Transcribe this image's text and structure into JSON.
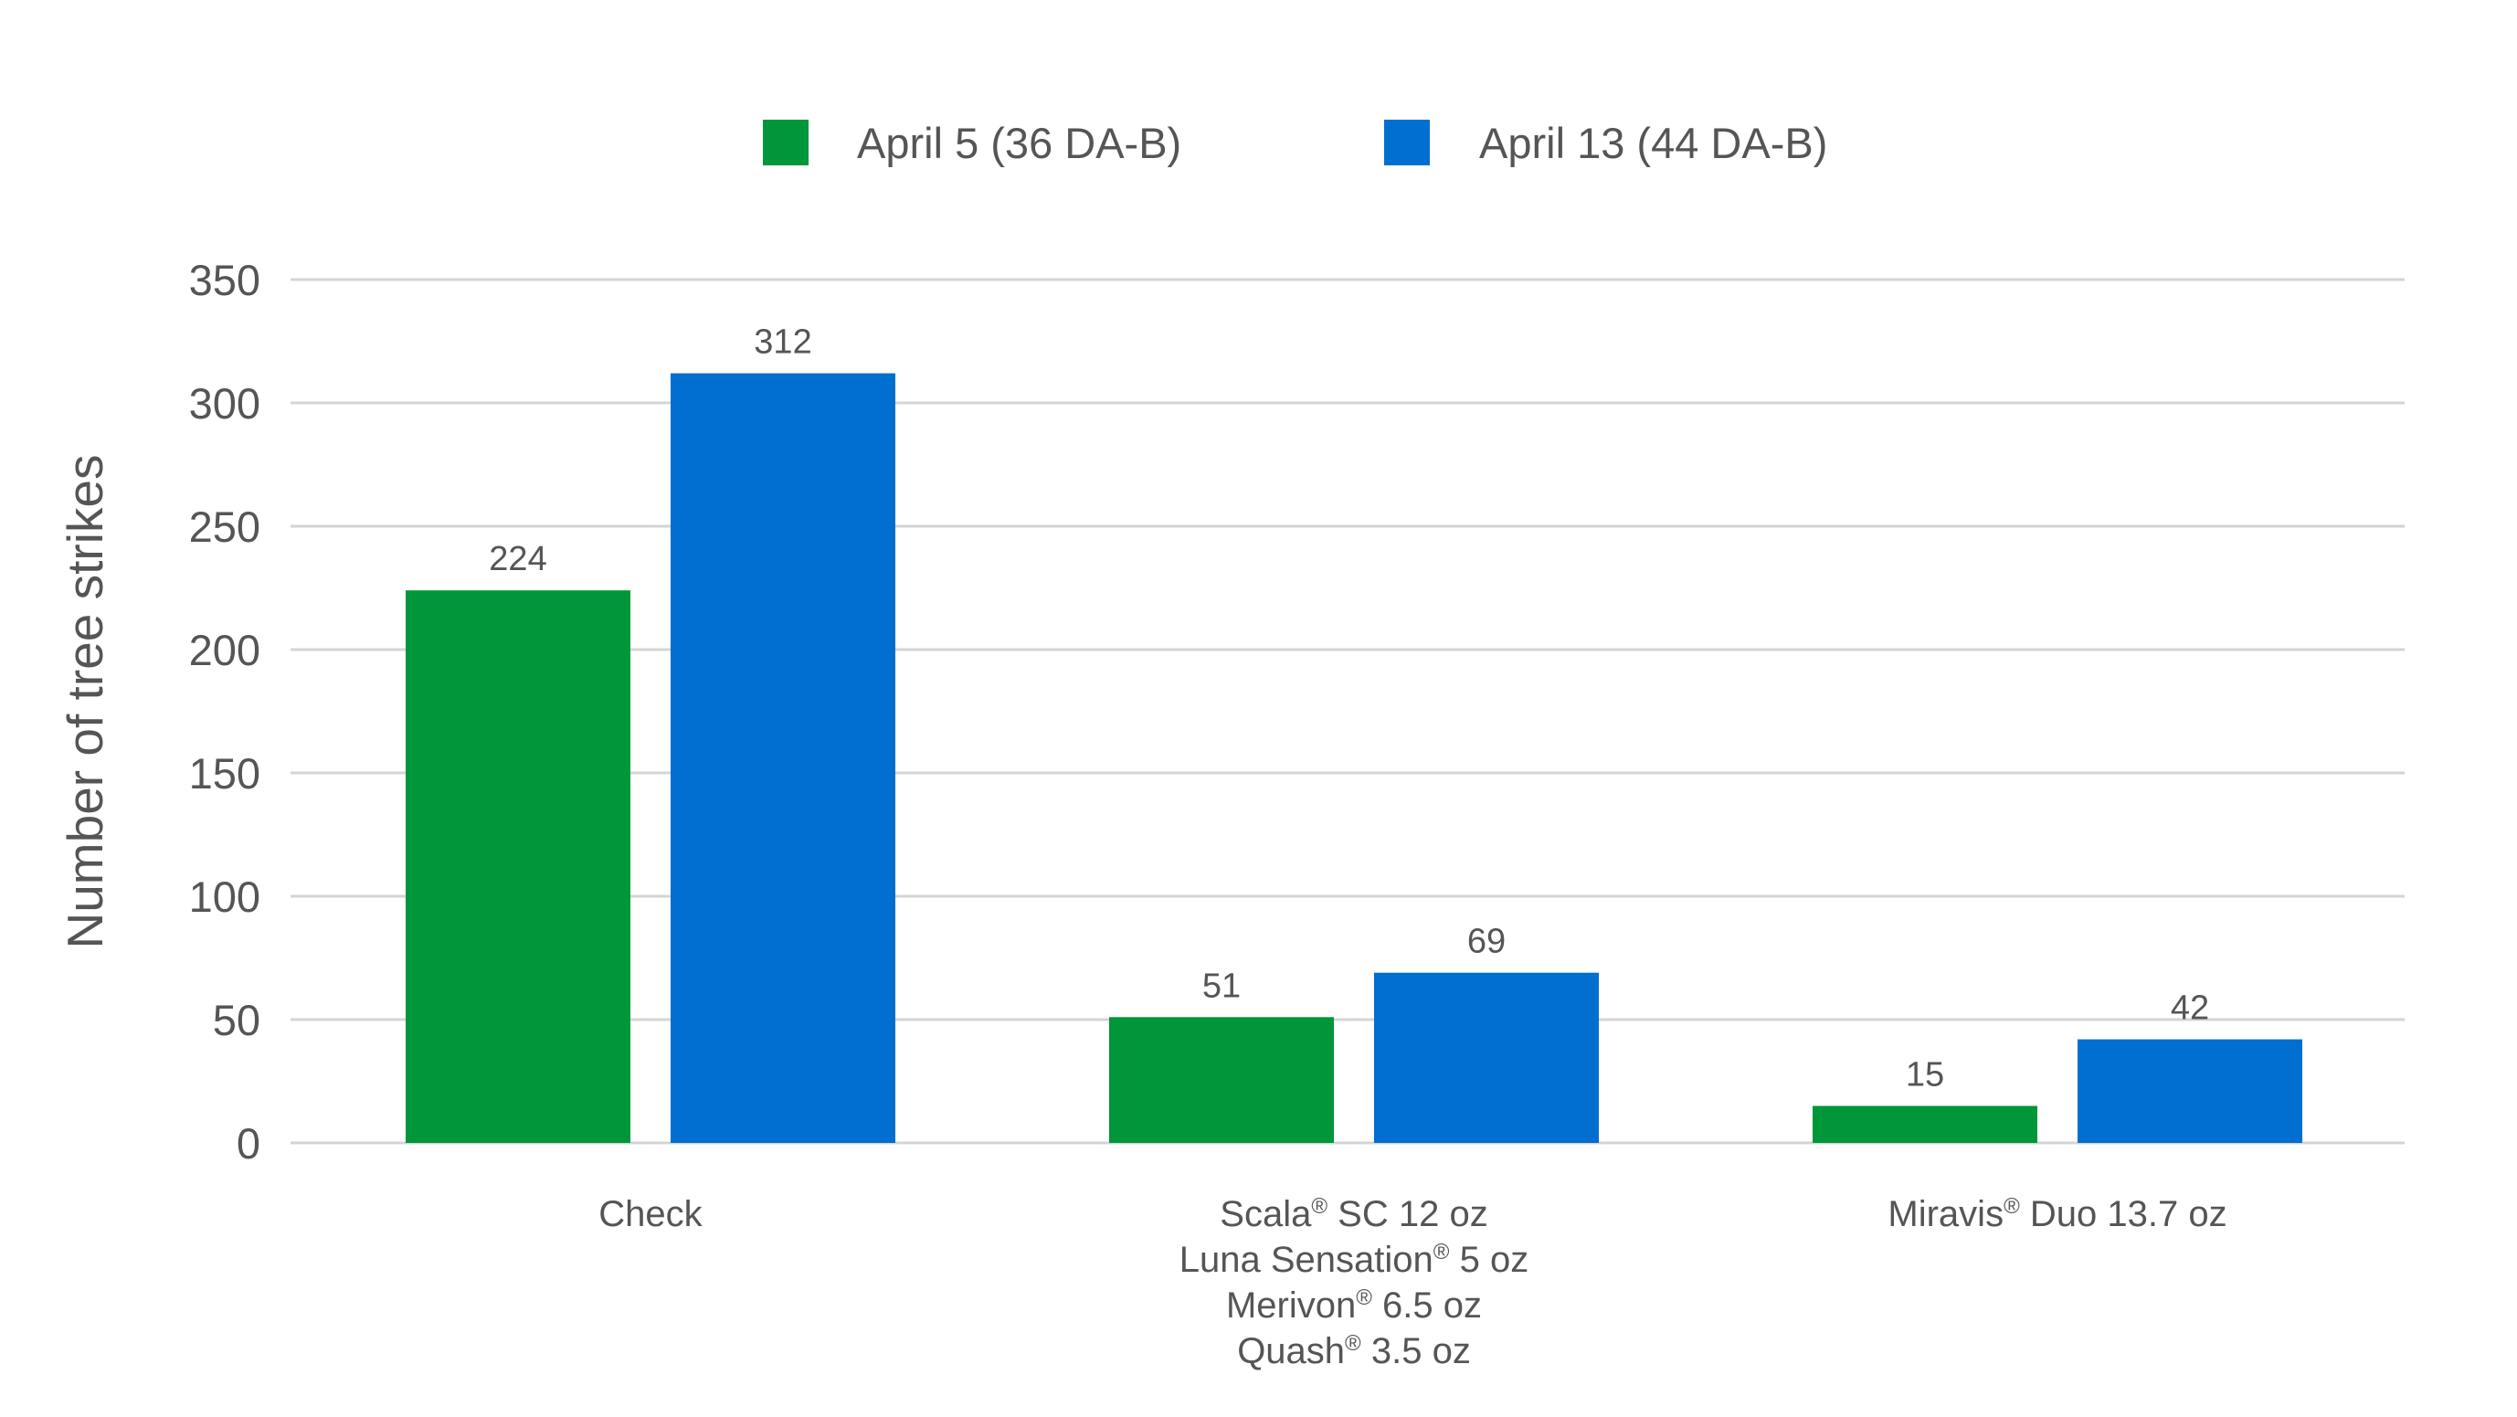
{
  "chart_data": {
    "type": "bar",
    "title": "",
    "xlabel": "",
    "ylabel": "Number of tree strikes",
    "ylim": [
      0,
      350
    ],
    "yticks": [
      0,
      50,
      100,
      150,
      200,
      250,
      300,
      350
    ],
    "grid": true,
    "legend_position": "top-center",
    "categories": [
      {
        "lines": [
          [
            "Check"
          ]
        ]
      },
      {
        "lines": [
          [
            "Scala",
            "®",
            " SC 12 oz"
          ],
          [
            "Luna Sensation",
            "®",
            " 5 oz"
          ],
          [
            "Merivon",
            "®",
            " 6.5 oz"
          ],
          [
            "Quash",
            "®",
            " 3.5 oz"
          ]
        ]
      },
      {
        "lines": [
          [
            "Miravis",
            "®",
            " Duo 13.7 oz"
          ]
        ]
      }
    ],
    "series": [
      {
        "name": "April 5 (36 DA-B)",
        "color": "#00963a",
        "values": [
          224,
          51,
          15
        ]
      },
      {
        "name": "April 13 (44 DA-B)",
        "color": "#006fcf",
        "values": [
          312,
          69,
          42
        ]
      }
    ]
  }
}
